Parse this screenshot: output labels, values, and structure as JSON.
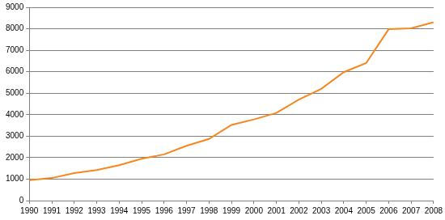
{
  "chart_data": {
    "type": "line",
    "categories": [
      "1990",
      "1991",
      "1992",
      "1993",
      "1994",
      "1995",
      "1996",
      "1997",
      "1998",
      "1999",
      "2000",
      "2001",
      "2002",
      "2003",
      "2004",
      "2005",
      "2006",
      "2007",
      "2008"
    ],
    "values": [
      950,
      1050,
      1280,
      1420,
      1650,
      1950,
      2150,
      2550,
      2870,
      3520,
      3780,
      4080,
      4700,
      5200,
      5980,
      6400,
      7980,
      8020,
      8300
    ],
    "color": "#f7861c",
    "ylim": [
      0,
      9000
    ],
    "yticks": [
      0,
      1000,
      2000,
      3000,
      4000,
      5000,
      6000,
      7000,
      8000,
      9000
    ],
    "grid": true
  }
}
